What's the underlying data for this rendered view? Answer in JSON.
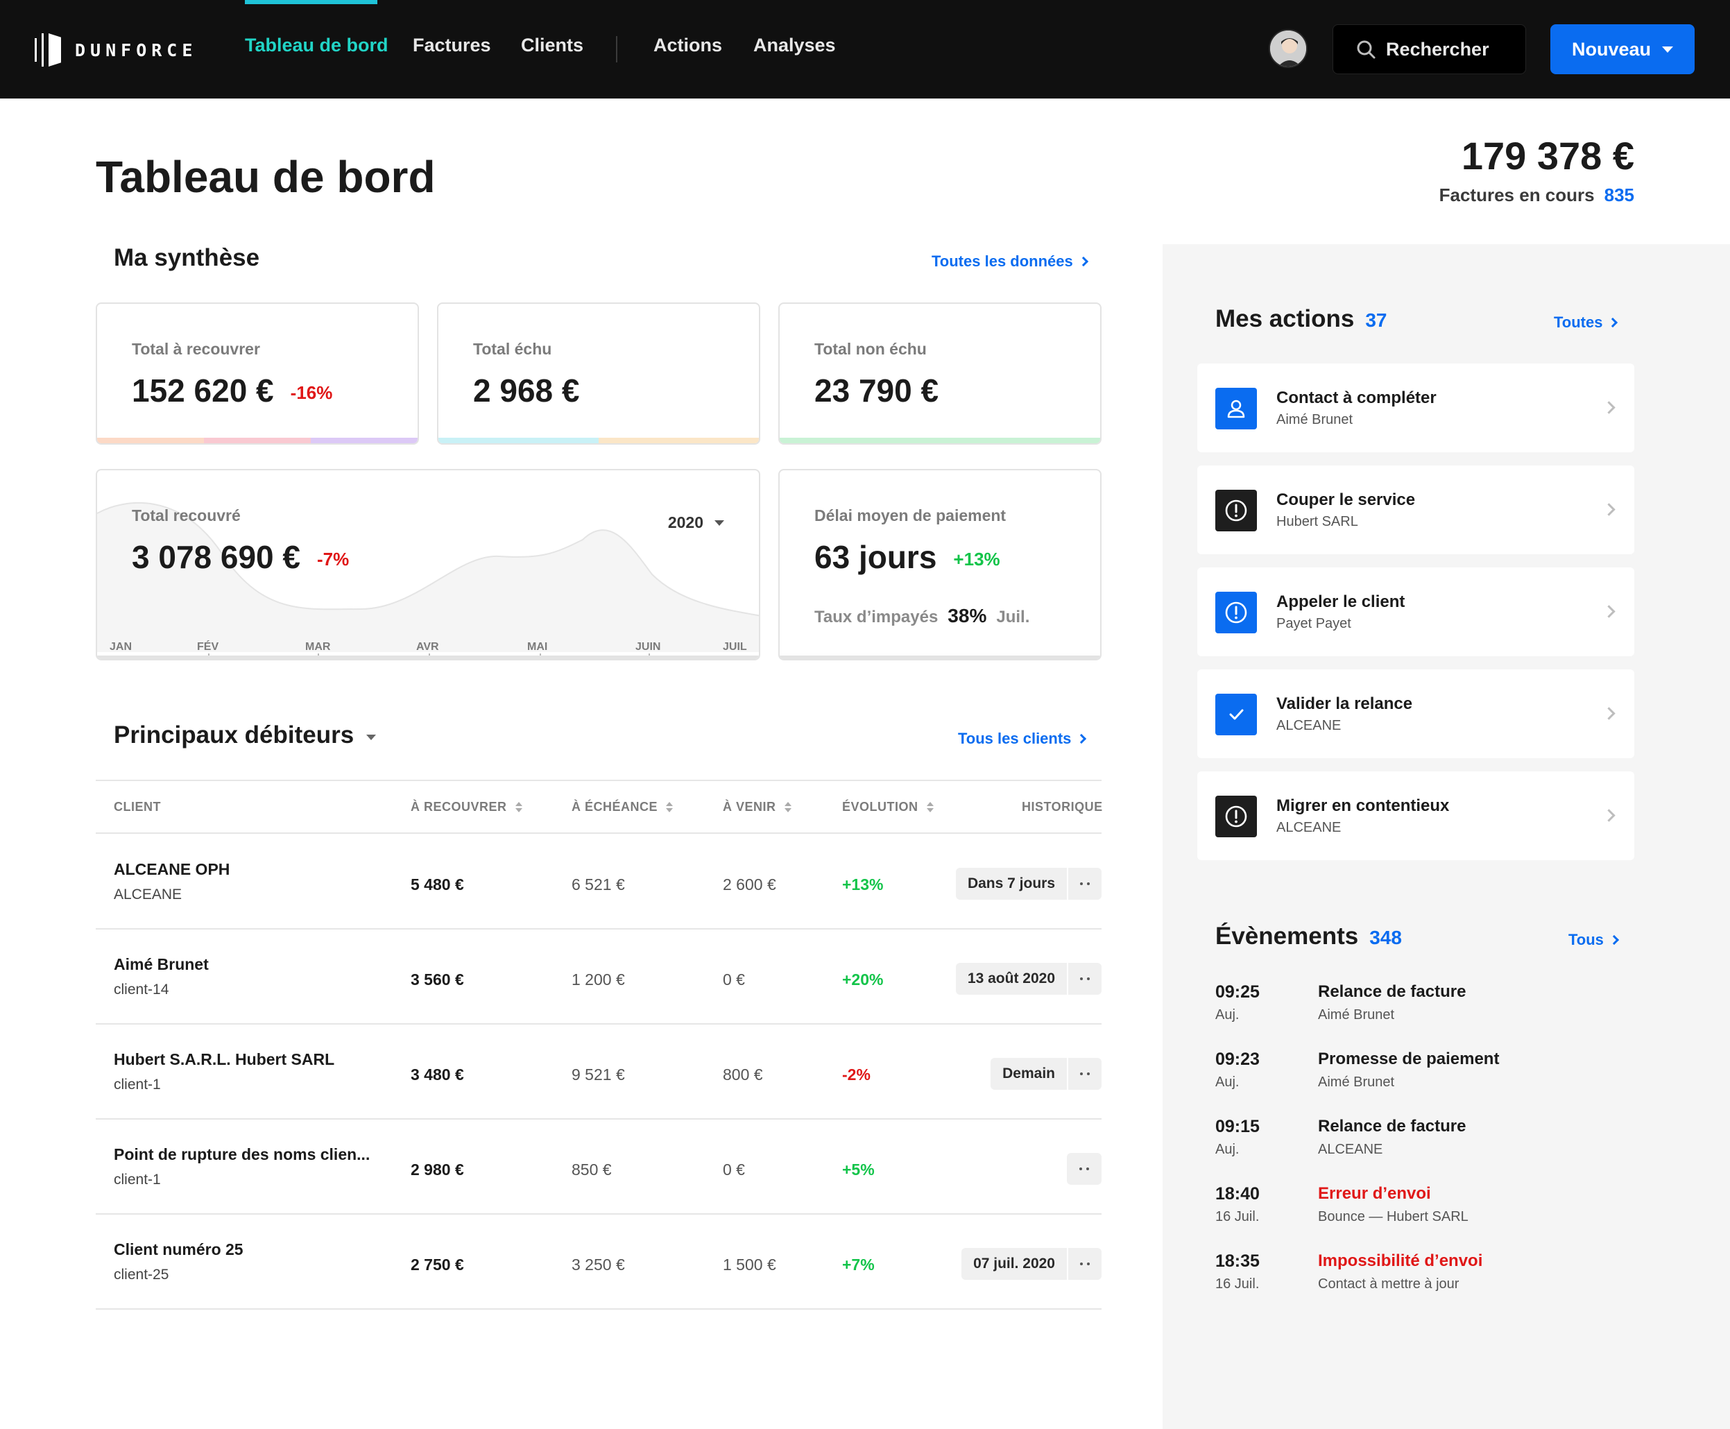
{
  "brand": {
    "name": "DUNFORCE"
  },
  "nav": {
    "items": [
      {
        "label": "Tableau de bord",
        "active": true
      },
      {
        "label": "Factures"
      },
      {
        "label": "Clients"
      },
      {
        "label": "Actions"
      },
      {
        "label": "Analyses"
      }
    ],
    "search_label": "Rechercher",
    "new_button_label": "Nouveau"
  },
  "page": {
    "title": "Tableau de bord",
    "total_amount": "179 378 €",
    "invoices_label": "Factures en cours",
    "invoices_count": "835"
  },
  "synthesis": {
    "title": "Ma synthèse",
    "link": "Toutes les données",
    "cards": {
      "a_recouvrer": {
        "label": "Total à recouvrer",
        "value": "152 620 €",
        "change": "-16%"
      },
      "echu": {
        "label": "Total échu",
        "value": "2 968 €"
      },
      "non_echu": {
        "label": "Total non échu",
        "value": "23 790 €"
      },
      "recouvre": {
        "label": "Total recouvré",
        "value": "3 078 690 €",
        "change": "-7%",
        "year": "2020",
        "months": [
          "JAN",
          "FÉV",
          "MAR",
          "AVR",
          "MAI",
          "JUIN",
          "JUIL"
        ]
      },
      "delai": {
        "label": "Délai moyen de paiement",
        "value": "63 jours",
        "change": "+13%",
        "unpaid_label": "Taux d’impayés",
        "unpaid_rate": "38%",
        "unpaid_period": "Juil."
      }
    },
    "colors": {
      "red": "#e01717",
      "green": "#13c44a",
      "blue": "#0a6cf0",
      "teal_active": "#21d4c6"
    }
  },
  "debtors": {
    "title": "Principaux débiteurs",
    "link": "Tous les clients",
    "columns": [
      "CLIENT",
      "À RECOUVRER",
      "À ÉCHÉANCE",
      "À VENIR",
      "ÉVOLUTION",
      "HISTORIQUE"
    ],
    "rows": [
      {
        "name": "ALCEANE OPH",
        "sub": "ALCEANE",
        "recouvrer": "5 480 €",
        "echeance": "6 521 €",
        "venir": "2 600 €",
        "evolution": "+13%",
        "history": "Dans 7 jours"
      },
      {
        "name": "Aimé Brunet",
        "sub": "client-14",
        "recouvrer": "3 560 €",
        "echeance": "1 200 €",
        "venir": "0 €",
        "evolution": "+20%",
        "history": "13 août 2020"
      },
      {
        "name": "Hubert S.A.R.L. Hubert SARL",
        "sub": "client-1",
        "recouvrer": "3 480 €",
        "echeance": "9 521 €",
        "venir": "800 €",
        "evolution": "-2%",
        "history": "Demain"
      },
      {
        "name": "Point de rupture des noms clien...",
        "sub": "client-1",
        "recouvrer": "2 980 €",
        "echeance": "850 €",
        "venir": "0 €",
        "evolution": "+5%",
        "history": ""
      },
      {
        "name": "Client numéro 25",
        "sub": "client-25",
        "recouvrer": "2 750 €",
        "echeance": "3 250 €",
        "venir": "1 500 €",
        "evolution": "+7%",
        "history": "07 juil. 2020"
      }
    ]
  },
  "actions": {
    "title": "Mes actions",
    "count": "37",
    "link": "Toutes",
    "items": [
      {
        "title": "Contact à compléter",
        "sub": "Aimé Brunet",
        "icon": "user-icon"
      },
      {
        "title": "Couper le service",
        "sub": "Hubert SARL",
        "icon": "alert-icon"
      },
      {
        "title": "Appeler le client",
        "sub": "Payet Payet",
        "icon": "alert-icon"
      },
      {
        "title": "Valider la relance",
        "sub": "ALCEANE",
        "icon": "check-icon"
      },
      {
        "title": "Migrer en contentieux",
        "sub": "ALCEANE",
        "icon": "alert-icon"
      }
    ]
  },
  "events": {
    "title": "Évènements",
    "count": "348",
    "link": "Tous",
    "items": [
      {
        "time": "09:25",
        "day": "Auj.",
        "title": "Relance de facture",
        "sub": "Aimé Brunet",
        "error": false
      },
      {
        "time": "09:23",
        "day": "Auj.",
        "title": "Promesse de paiement",
        "sub": "Aimé Brunet",
        "error": false
      },
      {
        "time": "09:15",
        "day": "Auj.",
        "title": "Relance de facture",
        "sub": "ALCEANE",
        "error": false
      },
      {
        "time": "18:40",
        "day": "16 Juil.",
        "title": "Erreur d’envoi",
        "sub": "Bounce — Hubert SARL",
        "error": true
      },
      {
        "time": "18:35",
        "day": "16 Juil.",
        "title": "Impossibilité d’envoi",
        "sub": "Contact à mettre à jour",
        "error": true
      }
    ]
  }
}
